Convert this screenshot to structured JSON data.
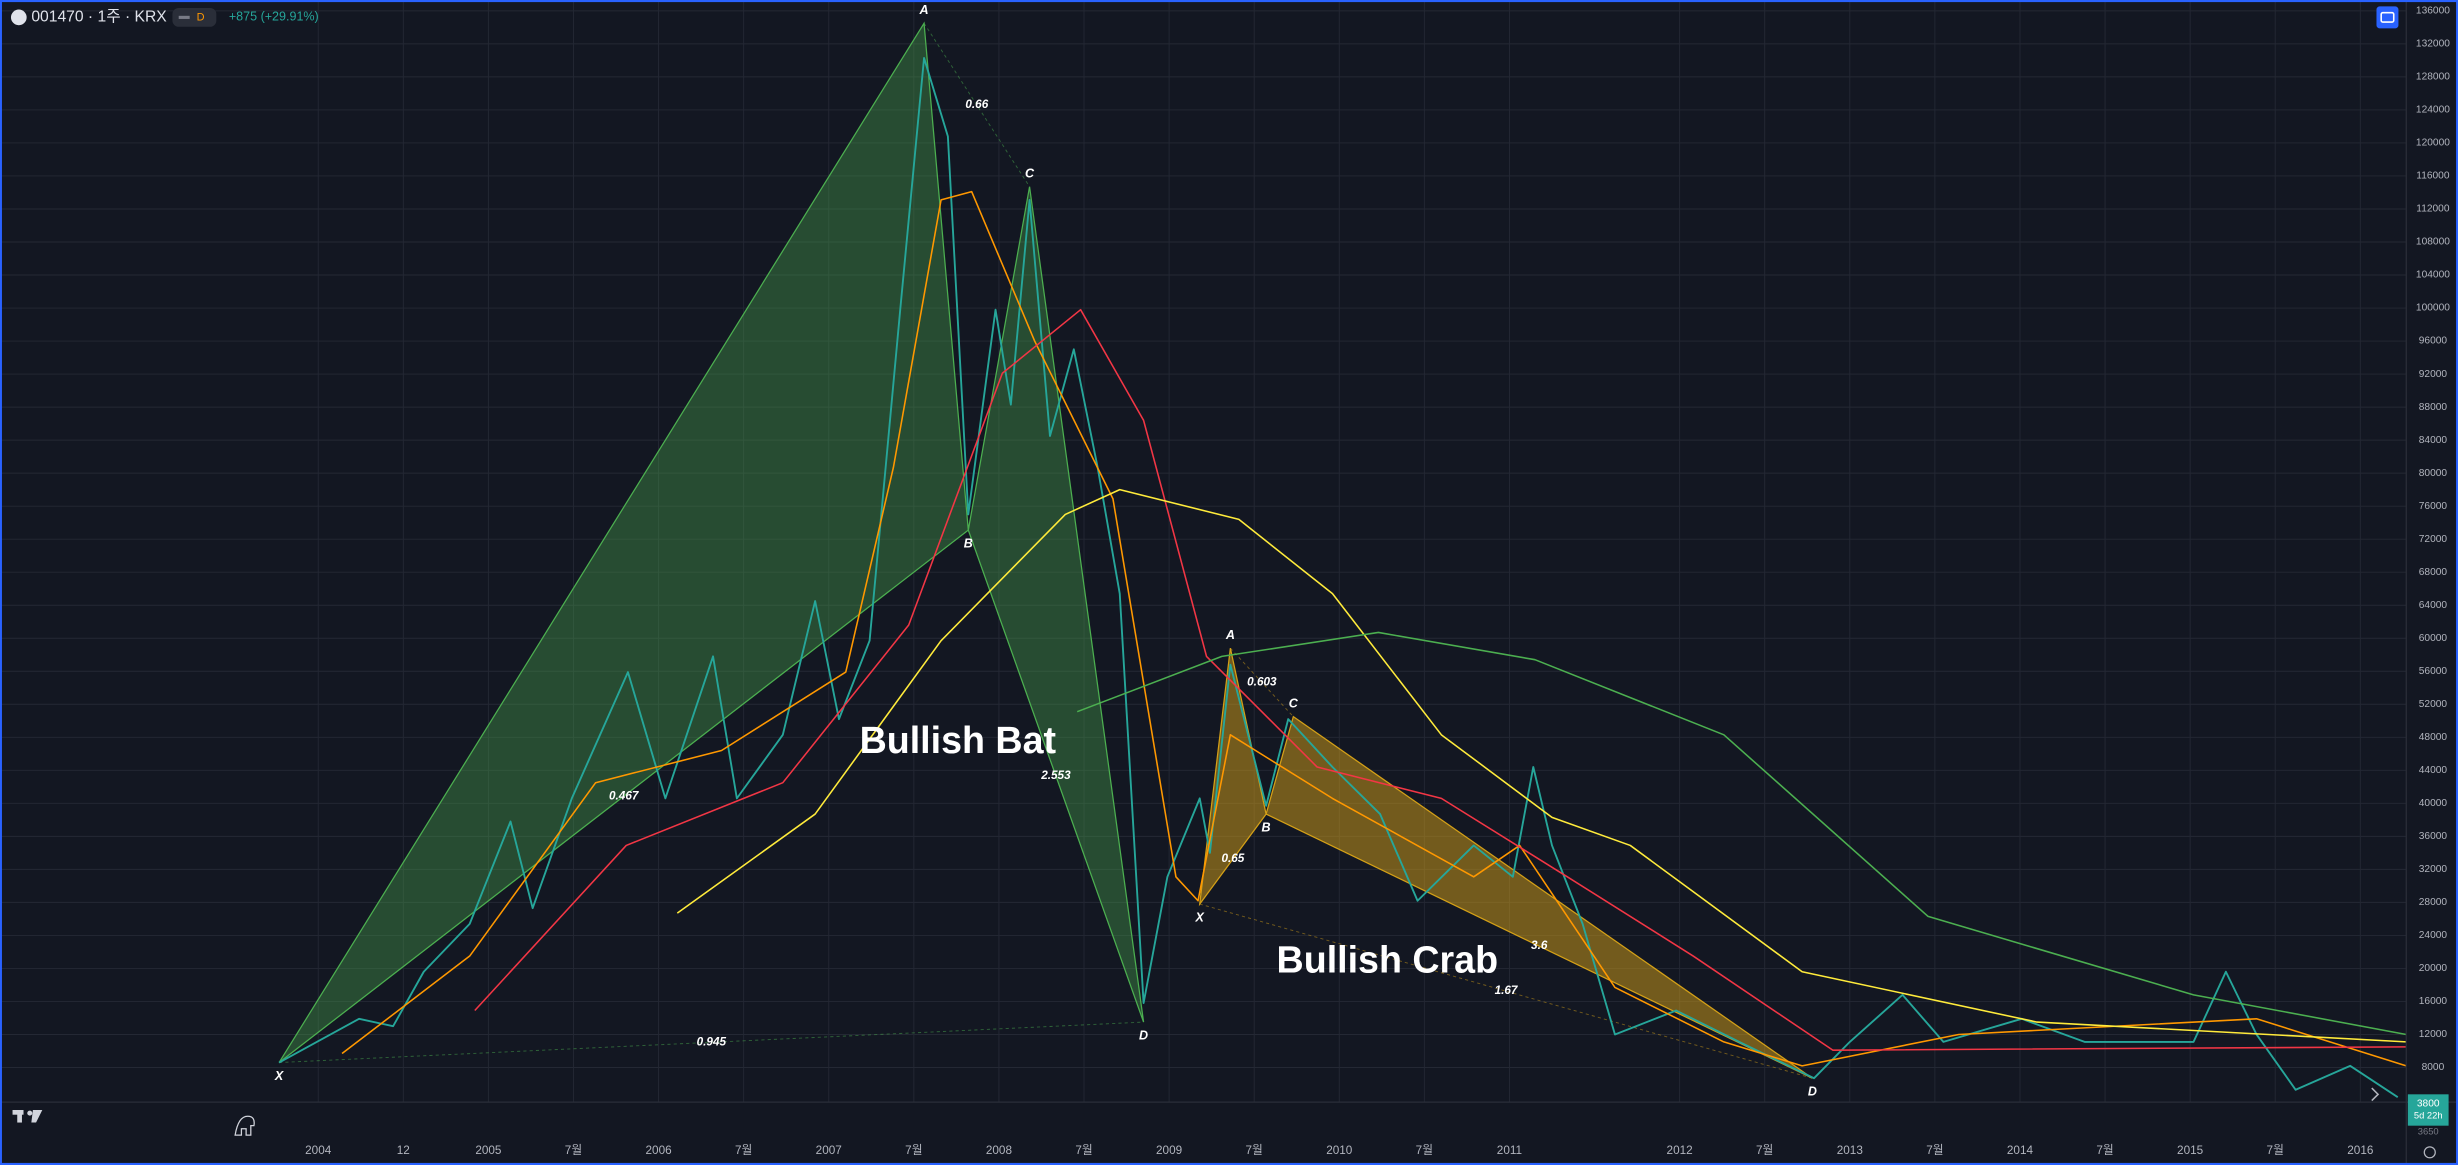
{
  "header": {
    "symbol": "001470 · 1주 · KRX",
    "interval_badge": "D",
    "change": "+875 (+29.91%)"
  },
  "chart_data": {
    "type": "line",
    "xlim": [
      2002.13,
      2016.27
    ],
    "ylim": [
      3800,
      137300
    ],
    "grid": true,
    "xticks": [
      2004,
      {
        "value": 2004.5,
        "label": "12"
      },
      2005,
      {
        "value": 2005.5,
        "label": "7월"
      },
      2006,
      {
        "value": 2006.5,
        "label": "7월"
      },
      2007,
      {
        "value": 2007.5,
        "label": "7월"
      },
      2008,
      {
        "value": 2008.5,
        "label": "7월"
      },
      2009,
      {
        "value": 2009.5,
        "label": "7월"
      },
      2010,
      {
        "value": 2010.5,
        "label": "7월"
      },
      2011,
      2012,
      {
        "value": 2012.5,
        "label": "7월"
      },
      2013,
      {
        "value": 2013.5,
        "label": "7월"
      },
      2014,
      {
        "value": 2014.5,
        "label": "7월"
      },
      2015,
      {
        "value": 2015.5,
        "label": "7월"
      },
      2016
    ],
    "yticks": [
      8000,
      12000,
      16000,
      20000,
      24000,
      28000,
      32000,
      36000,
      40000,
      44000,
      48000,
      52000,
      56000,
      60000,
      64000,
      68000,
      72000,
      76000,
      80000,
      84000,
      88000,
      92000,
      96000,
      100000,
      104000,
      108000,
      112000,
      116000,
      120000,
      124000,
      128000,
      132000,
      136000
    ],
    "series": [
      {
        "color": "#26a69a",
        "x": [
          2003.77,
          2004.24,
          2004.44,
          2004.62,
          2004.89,
          2005.13,
          2005.26,
          2005.49,
          2005.82,
          2006.04,
          2006.32,
          2006.46,
          2006.73,
          2006.92,
          2007.06,
          2007.24,
          2007.42,
          2007.56,
          2007.7,
          2007.82,
          2007.98,
          2008.07,
          2008.18,
          2008.3,
          2008.44,
          2008.58,
          2008.71,
          2008.85,
          2008.99,
          2009.18,
          2009.24,
          2009.36,
          2009.57,
          2009.7,
          2009.96,
          2010.24,
          2010.46,
          2010.79,
          2011.02,
          2011.14,
          2011.25,
          2011.43,
          2011.62,
          2011.98,
          2012.35,
          2012.79,
          2013.0,
          2013.31,
          2013.55,
          2014.01,
          2014.38,
          2015.02,
          2015.21,
          2015.39,
          2015.62,
          2015.94,
          2016.22
        ],
        "values": [
          8600,
          13900,
          13000,
          19600,
          25400,
          37800,
          27300,
          40600,
          55900,
          40600,
          57800,
          40600,
          48300,
          64500,
          50200,
          59700,
          99800,
          130300,
          120800,
          75000,
          99800,
          88300,
          113100,
          84500,
          95000,
          80700,
          65400,
          15800,
          31100,
          40600,
          34000,
          56800,
          39700,
          50200,
          44400,
          38700,
          28200,
          34900,
          31100,
          44400,
          34900,
          25400,
          12000,
          14900,
          11100,
          6700,
          11100,
          16800,
          11100,
          13900,
          11100,
          11100,
          19600,
          12000,
          5300,
          8200,
          4400
        ]
      },
      {
        "color": "#ff9800",
        "x": [
          2004.14,
          2004.89,
          2005.63,
          2006.37,
          2007.1,
          2007.38,
          2007.66,
          2007.84,
          2008.21,
          2008.67,
          2009.04,
          2009.17,
          2009.36,
          2009.96,
          2010.79,
          2011.06,
          2011.62,
          2012.26,
          2012.72,
          2013.64,
          2015.39,
          2016.27
        ],
        "values": [
          9700,
          21500,
          42500,
          46400,
          55900,
          80700,
          113100,
          114100,
          96000,
          76900,
          31100,
          28200,
          48300,
          40600,
          31100,
          34900,
          17700,
          11100,
          8200,
          12000,
          13900,
          8200
        ]
      },
      {
        "color": "#f23645",
        "x": [
          2004.92,
          2005.81,
          2006.73,
          2007.47,
          2008.02,
          2008.48,
          2008.85,
          2009.22,
          2009.87,
          2010.6,
          2011.34,
          2012.08,
          2012.9,
          2016.27
        ],
        "values": [
          14900,
          34900,
          42500,
          61600,
          92100,
          99800,
          86400,
          57800,
          44400,
          40600,
          31100,
          21500,
          10100,
          10500
        ]
      },
      {
        "color": "#ffeb3b",
        "x": [
          2006.11,
          2006.92,
          2007.66,
          2008.39,
          2008.71,
          2009.41,
          2009.96,
          2010.6,
          2011.25,
          2011.71,
          2012.72,
          2014.1,
          2016.27
        ],
        "values": [
          26700,
          38700,
          59700,
          75000,
          78000,
          74400,
          65400,
          48300,
          38300,
          34900,
          19600,
          13500,
          11100
        ]
      },
      {
        "color": "#4caf50",
        "x": [
          2008.46,
          2009.31,
          2010.23,
          2011.15,
          2012.26,
          2013.46,
          2015.02,
          2016.27
        ],
        "values": [
          51100,
          57800,
          60700,
          57400,
          48300,
          26300,
          16800,
          12000
        ]
      }
    ],
    "patterns": [
      {
        "name": "Bullish Bat",
        "color": "#4caf50",
        "points": [
          {
            "label": "X",
            "x": 2003.77,
            "y": 8600
          },
          {
            "label": "A",
            "x": 2007.56,
            "y": 134500
          },
          {
            "label": "B",
            "x": 2007.82,
            "y": 73100
          },
          {
            "label": "C",
            "x": 2008.18,
            "y": 114700
          },
          {
            "label": "D",
            "x": 2008.85,
            "y": 13500
          }
        ],
        "ratios": [
          0.467,
          0.66,
          2.553,
          0.945
        ]
      },
      {
        "name": "Bullish Crab",
        "color": "#d4a017",
        "points": [
          {
            "label": "X",
            "x": 2009.18,
            "y": 27800
          },
          {
            "label": "A",
            "x": 2009.36,
            "y": 58800
          },
          {
            "label": "B",
            "x": 2009.57,
            "y": 38700
          },
          {
            "label": "C",
            "x": 2009.73,
            "y": 50500
          },
          {
            "label": "D",
            "x": 2012.78,
            "y": 6700
          }
        ],
        "ratios": [
          0.65,
          0.603,
          3.6,
          1.67
        ]
      }
    ],
    "last_price": 3800,
    "countdown": "5d 22h",
    "scale_low": 3650
  }
}
